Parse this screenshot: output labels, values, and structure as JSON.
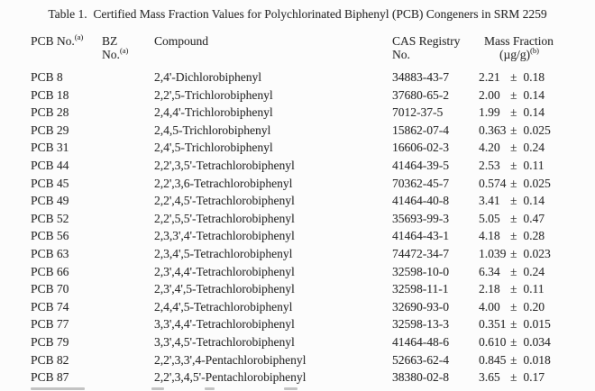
{
  "title": "Table 1.  Certified Mass Fraction Values for Polychlorinated Biphenyl (PCB) Congeners in SRM 2259",
  "headers": {
    "pcb_no": "PCB No.",
    "note_a": "(a)",
    "bz_line1": "BZ",
    "bz_line2": "No.",
    "compound": "Compound",
    "cas_line1": "CAS Registry",
    "cas_line2": "No.",
    "mass_line1": "Mass Fraction",
    "mass_line2": "(µg/g)",
    "note_b": "(b)"
  },
  "symbols": {
    "plus_minus": "±"
  },
  "rows": [
    {
      "pcb_no": "PCB 8",
      "bz_no": "",
      "compound": "2,4'-Dichlorobiphenyl",
      "cas": "34883-43-7",
      "value": "2.21",
      "uncertainty": "0.18"
    },
    {
      "pcb_no": "PCB 18",
      "bz_no": "",
      "compound": "2,2',5-Trichlorobiphenyl",
      "cas": "37680-65-2",
      "value": "2.00",
      "uncertainty": "0.14"
    },
    {
      "pcb_no": "PCB 28",
      "bz_no": "",
      "compound": "2,4,4'-Trichlorobiphenyl",
      "cas": "7012-37-5",
      "value": "1.99",
      "uncertainty": "0.14"
    },
    {
      "pcb_no": "PCB 29",
      "bz_no": "",
      "compound": "2,4,5-Trichlorobiphenyl",
      "cas": "15862-07-4",
      "value": "0.363",
      "uncertainty": "0.025"
    },
    {
      "pcb_no": "PCB 31",
      "bz_no": "",
      "compound": "2,4',5-Trichlorobiphenyl",
      "cas": "16606-02-3",
      "value": "4.20",
      "uncertainty": "0.24"
    },
    {
      "pcb_no": "PCB 44",
      "bz_no": "",
      "compound": "2,2',3,5'-Tetrachlorobiphenyl",
      "cas": "41464-39-5",
      "value": "2.53",
      "uncertainty": "0.11"
    },
    {
      "pcb_no": "PCB 45",
      "bz_no": "",
      "compound": "2,2',3,6-Tetrachlorobiphenyl",
      "cas": "70362-45-7",
      "value": "0.574",
      "uncertainty": "0.025"
    },
    {
      "pcb_no": "PCB 49",
      "bz_no": "",
      "compound": "2,2',4,5'-Tetrachlorobiphenyl",
      "cas": "41464-40-8",
      "value": "3.41",
      "uncertainty": "0.14"
    },
    {
      "pcb_no": "PCB 52",
      "bz_no": "",
      "compound": "2,2',5,5'-Tetrachlorobiphenyl",
      "cas": "35693-99-3",
      "value": "5.05",
      "uncertainty": "0.47"
    },
    {
      "pcb_no": "PCB 56",
      "bz_no": "",
      "compound": "2,3,3',4'-Tetrachlorobiphenyl",
      "cas": "41464-43-1",
      "value": "4.18",
      "uncertainty": "0.28"
    },
    {
      "pcb_no": "PCB 63",
      "bz_no": "",
      "compound": "2,3,4',5-Tetrachlorobiphenyl",
      "cas": "74472-34-7",
      "value": "1.039",
      "uncertainty": "0.023"
    },
    {
      "pcb_no": "PCB 66",
      "bz_no": "",
      "compound": "2,3',4,4'-Tetrachlorobiphenyl",
      "cas": "32598-10-0",
      "value": "6.34",
      "uncertainty": "0.24"
    },
    {
      "pcb_no": "PCB 70",
      "bz_no": "",
      "compound": "2,3',4',5-Tetrachlorobiphenyl",
      "cas": "32598-11-1",
      "value": "2.18",
      "uncertainty": "0.11"
    },
    {
      "pcb_no": "PCB 74",
      "bz_no": "",
      "compound": "2,4,4',5-Tetrachlorobiphenyl",
      "cas": "32690-93-0",
      "value": "4.00",
      "uncertainty": "0.20"
    },
    {
      "pcb_no": "PCB 77",
      "bz_no": "",
      "compound": "3,3',4,4'-Tetrachlorobiphenyl",
      "cas": "32598-13-3",
      "value": "0.351",
      "uncertainty": "0.015"
    },
    {
      "pcb_no": "PCB 79",
      "bz_no": "",
      "compound": "3,3',4,5'-Tetrachlorobiphenyl",
      "cas": "41464-48-6",
      "value": "0.610",
      "uncertainty": "0.034"
    },
    {
      "pcb_no": "PCB 82",
      "bz_no": "",
      "compound": "2,2',3,3',4-Pentachlorobiphenyl",
      "cas": "52663-62-4",
      "value": "0.845",
      "uncertainty": "0.018"
    },
    {
      "pcb_no": "PCB 87",
      "bz_no": "",
      "compound": "2,2',3,4,5'-Pentachlorobiphenyl",
      "cas": "38380-02-8",
      "value": "3.65",
      "uncertainty": "0.17"
    }
  ]
}
